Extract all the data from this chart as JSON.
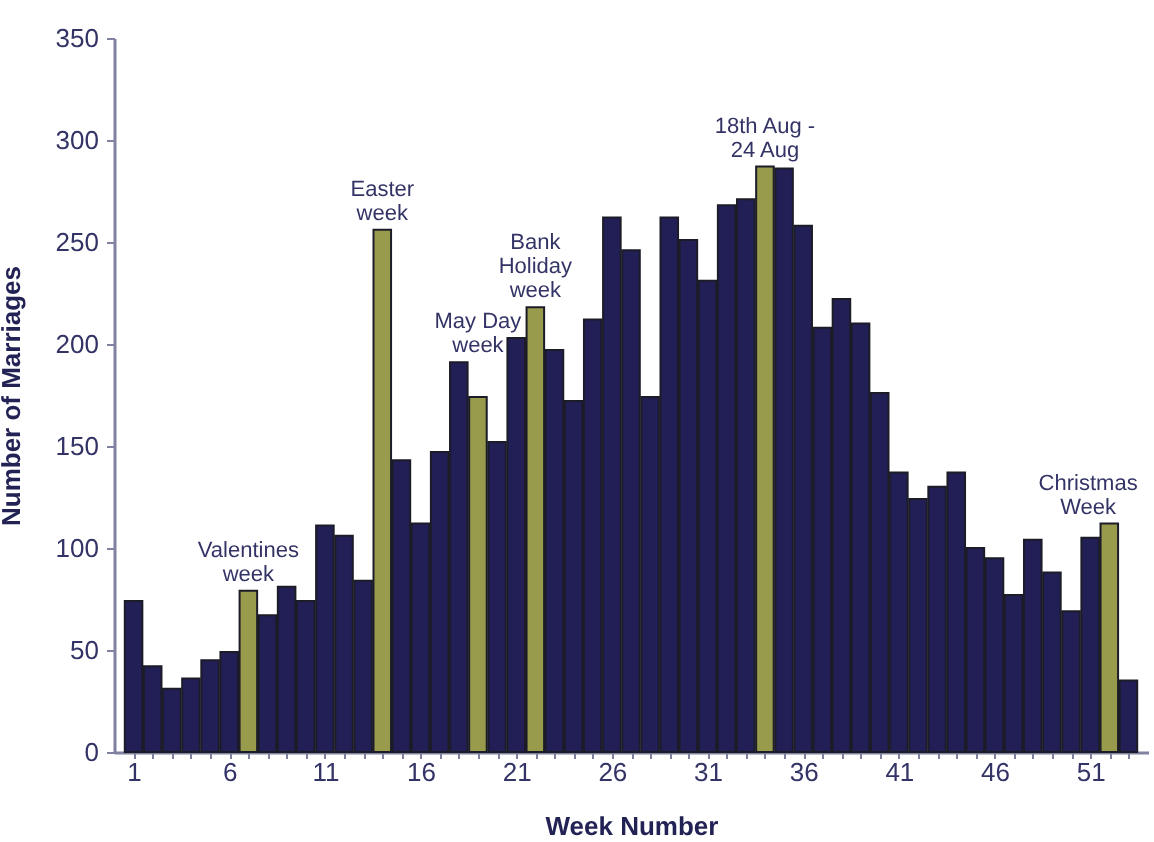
{
  "chart_data": {
    "type": "bar",
    "xlabel": "Week Number",
    "ylabel": "Number of Marriages",
    "x": [
      1,
      2,
      3,
      4,
      5,
      6,
      7,
      8,
      9,
      10,
      11,
      12,
      13,
      14,
      15,
      16,
      17,
      18,
      19,
      20,
      21,
      22,
      23,
      24,
      25,
      26,
      27,
      28,
      29,
      30,
      31,
      32,
      33,
      34,
      35,
      36,
      37,
      38,
      39,
      40,
      41,
      42,
      43,
      44,
      45,
      46,
      47,
      48,
      49,
      50,
      51,
      52,
      53
    ],
    "values": [
      74,
      42,
      31,
      36,
      45,
      49,
      79,
      67,
      81,
      74,
      111,
      106,
      84,
      256,
      143,
      112,
      147,
      191,
      174,
      152,
      203,
      218,
      197,
      172,
      212,
      262,
      246,
      174,
      262,
      251,
      231,
      268,
      271,
      287,
      286,
      258,
      208,
      222,
      210,
      176,
      137,
      124,
      130,
      137,
      100,
      95,
      77,
      104,
      88,
      69,
      105,
      112,
      35
    ],
    "colors": [
      "#211f56",
      "#211f56",
      "#211f56",
      "#211f56",
      "#211f56",
      "#211f56",
      "#989a4c",
      "#211f56",
      "#211f56",
      "#211f56",
      "#211f56",
      "#211f56",
      "#211f56",
      "#989a4c",
      "#211f56",
      "#211f56",
      "#211f56",
      "#211f56",
      "#989a4c",
      "#211f56",
      "#211f56",
      "#989a4c",
      "#211f56",
      "#211f56",
      "#211f56",
      "#211f56",
      "#211f56",
      "#211f56",
      "#211f56",
      "#211f56",
      "#211f56",
      "#211f56",
      "#211f56",
      "#989a4c",
      "#211f56",
      "#211f56",
      "#211f56",
      "#211f56",
      "#211f56",
      "#211f56",
      "#211f56",
      "#211f56",
      "#211f56",
      "#211f56",
      "#211f56",
      "#211f56",
      "#211f56",
      "#211f56",
      "#211f56",
      "#211f56",
      "#211f56",
      "#989a4c",
      "#211f56"
    ],
    "xlim": [
      0.5,
      53.5
    ],
    "xticks": [
      1,
      {
        "value": 2,
        "label": null
      },
      {
        "value": 3,
        "label": null
      },
      {
        "value": 4,
        "label": null
      },
      {
        "value": 5,
        "label": null
      },
      6,
      {
        "value": 7,
        "label": null
      },
      {
        "value": 8,
        "label": null
      },
      {
        "value": 9,
        "label": null
      },
      {
        "value": 10,
        "label": null
      },
      11,
      {
        "value": 12,
        "label": null
      },
      {
        "value": 13,
        "label": null
      },
      {
        "value": 14,
        "label": null
      },
      {
        "value": 15,
        "label": null
      },
      16,
      {
        "value": 17,
        "label": null
      },
      {
        "value": 18,
        "label": null
      },
      {
        "value": 19,
        "label": null
      },
      {
        "value": 20,
        "label": null
      },
      21,
      {
        "value": 22,
        "label": null
      },
      {
        "value": 23,
        "label": null
      },
      {
        "value": 24,
        "label": null
      },
      {
        "value": 25,
        "label": null
      },
      26,
      {
        "value": 27,
        "label": null
      },
      {
        "value": 28,
        "label": null
      },
      {
        "value": 29,
        "label": null
      },
      {
        "value": 30,
        "label": null
      },
      31,
      {
        "value": 32,
        "label": null
      },
      {
        "value": 33,
        "label": null
      },
      {
        "value": 34,
        "label": null
      },
      {
        "value": 35,
        "label": null
      },
      36,
      {
        "value": 37,
        "label": null
      },
      {
        "value": 38,
        "label": null
      },
      {
        "value": 39,
        "label": null
      },
      {
        "value": 40,
        "label": null
      },
      41,
      {
        "value": 42,
        "label": null
      },
      {
        "value": 43,
        "label": null
      },
      {
        "value": 44,
        "label": null
      },
      {
        "value": 45,
        "label": null
      },
      46,
      {
        "value": 47,
        "label": null
      },
      {
        "value": 48,
        "label": null
      },
      {
        "value": 49,
        "label": null
      },
      {
        "value": 50,
        "label": null
      },
      51,
      {
        "value": 52,
        "label": null
      },
      {
        "value": 53,
        "label": null
      }
    ],
    "ylim": [
      0,
      350
    ],
    "yticks": [
      0,
      50,
      100,
      150,
      200,
      250,
      300,
      350
    ],
    "annotations": [
      {
        "text": "Valentines\nweek",
        "x": 7,
        "y": 79
      },
      {
        "text": "Easter\nweek",
        "x": 14,
        "y": 256
      },
      {
        "text": "May Day\nweek",
        "x": 19,
        "y": 174
      },
      {
        "text": "Bank\nHoliday\nweek",
        "x": 22,
        "y": 218
      },
      {
        "text": "18th Aug -\n24 Aug",
        "x": 34,
        "y": 287
      },
      {
        "text": "Christmas\nWeek",
        "x": 52,
        "y": 112
      }
    ]
  }
}
